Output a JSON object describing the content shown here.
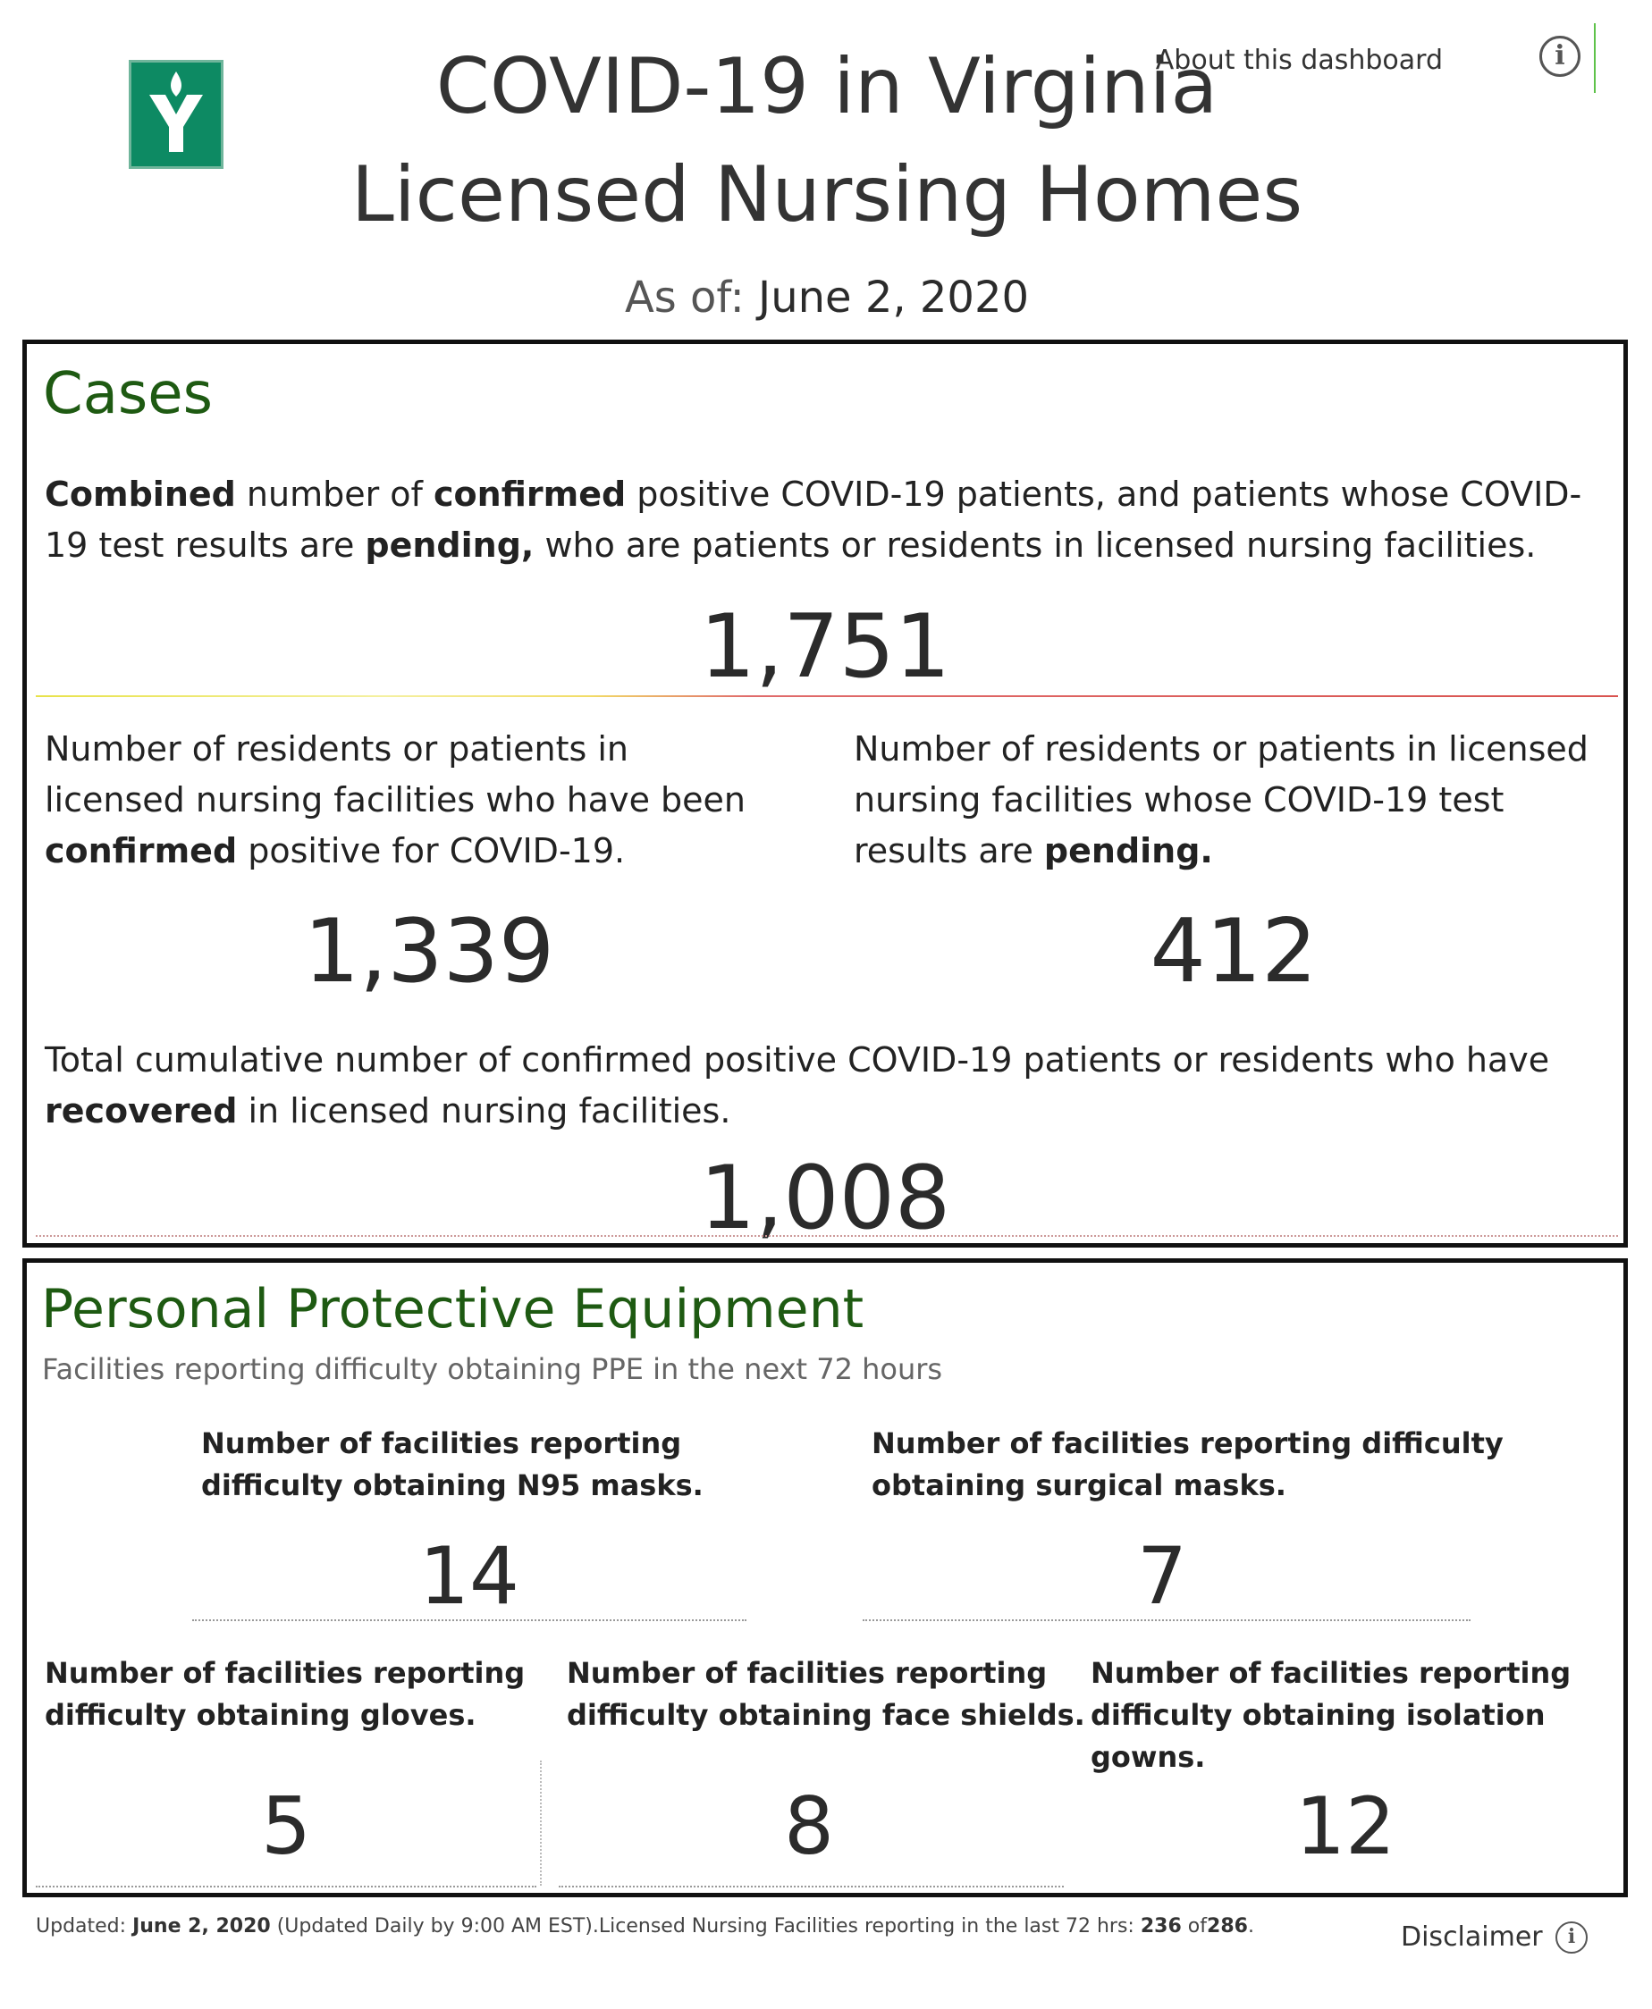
{
  "header": {
    "title_line1": "COVID-19 in Virginia",
    "title_line2": "Licensed Nursing Homes",
    "asof_label": "As of:",
    "asof_date": "June 2, 2020",
    "about_link": "About this dashboard",
    "about_icon": "info-icon",
    "logo_icon": "vhhc-logo"
  },
  "cases": {
    "heading": "Cases",
    "combined": {
      "desc_parts": [
        "Combined",
        " number of ",
        "confirmed",
        " positive COVID-19 patients, and patients whose COVID-19 test results are ",
        "pending,",
        " who are patients or residents in licensed nursing facilities."
      ],
      "value": "1,751"
    },
    "confirmed": {
      "desc_parts": [
        "Number of residents or patients in licensed nursing facilities who have been ",
        "confirmed",
        " positive for COVID-19."
      ],
      "value": "1,339"
    },
    "pending": {
      "desc_parts": [
        "Number of residents or patients in licensed nursing facilities whose COVID-19 test results are ",
        "pending."
      ],
      "value": "412"
    },
    "recovered": {
      "desc_parts": [
        "Total cumulative number of confirmed positive COVID-19 patients or residents who have ",
        "recovered",
        " in licensed nursing facilities."
      ],
      "value": "1,008"
    }
  },
  "ppe": {
    "heading": "Personal Protective Equipment",
    "subheading": "Facilities reporting difficulty obtaining PPE in the next 72 hours",
    "n95": {
      "line1": "Number of facilities reporting",
      "line2": "difficulty obtaining N95 masks.",
      "value": "14"
    },
    "surgical": {
      "line1": "Number of facilities reporting difficulty",
      "line2": "obtaining surgical masks.",
      "value": "7"
    },
    "gloves": {
      "line1": "Number of facilities reporting",
      "line2": "difficulty obtaining gloves.",
      "value": "5"
    },
    "shields": {
      "line1": "Number of facilities reporting",
      "line2": "difficulty obtaining face shields.",
      "value": "8"
    },
    "gowns": {
      "line1": "Number of facilities reporting",
      "line2": "difficulty obtaining isolation gowns.",
      "value": "12"
    }
  },
  "footer": {
    "updated_label": "Updated:",
    "updated_date": "June 2, 2020",
    "updated_note": "(Updated Daily by 9:00 AM EST).Licensed Nursing Facilities reporting in the last 72 hrs:",
    "reporting_count": "236",
    "of_label": "of",
    "total_count": "286",
    "end": ".",
    "disclaimer": "Disclaimer",
    "disclaimer_icon": "info-icon"
  },
  "colors": {
    "section_heading": "#1e5a12",
    "logo_green": "#0d8a63"
  }
}
